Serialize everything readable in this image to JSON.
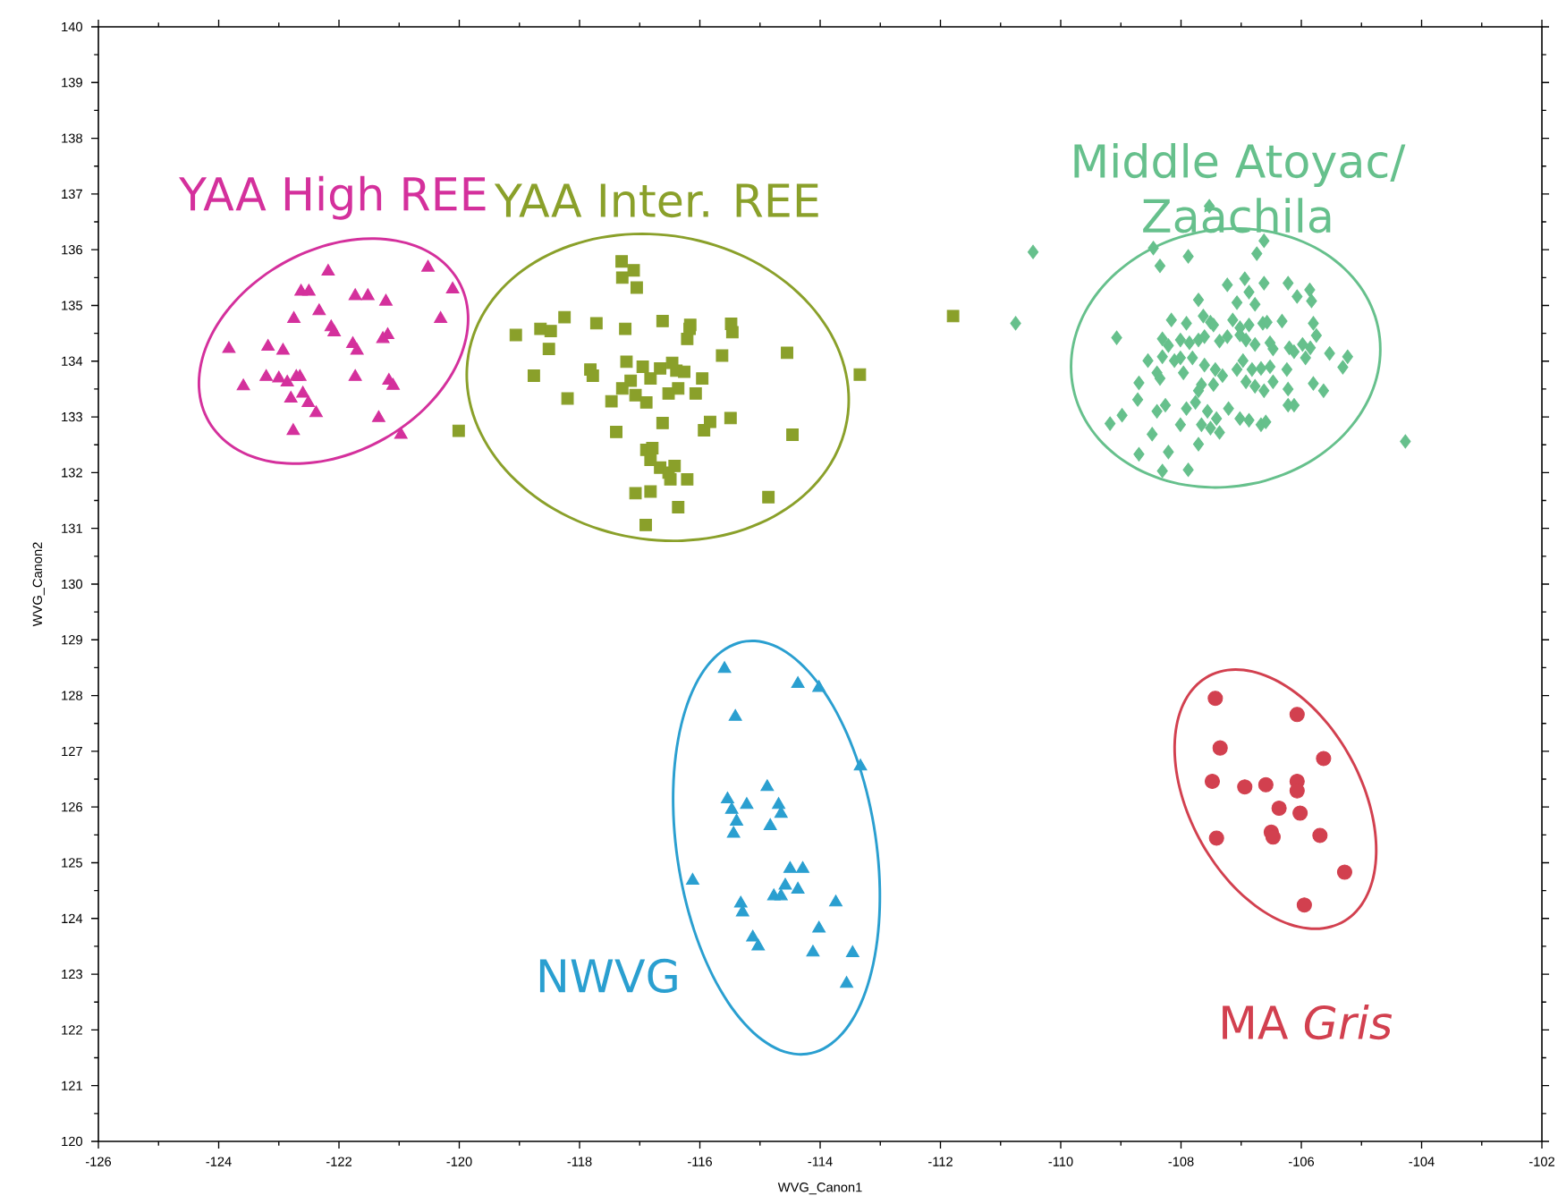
{
  "chart_data": {
    "type": "scatter",
    "xlabel": "WVG_Canon1",
    "ylabel": "WVG_Canon2",
    "xlim": [
      -126,
      -102
    ],
    "xticks": [
      -126,
      -124,
      -122,
      -120,
      -118,
      -116,
      -114,
      -112,
      -110,
      -108,
      -106,
      -104,
      -102
    ],
    "ylim": [
      120,
      140
    ],
    "yticks": [
      120,
      121,
      122,
      123,
      124,
      125,
      126,
      127,
      128,
      129,
      130,
      131,
      132,
      133,
      134,
      135,
      136,
      137,
      138,
      139,
      140
    ],
    "series": [
      {
        "name": "YAA High REE",
        "color": "#d4309c",
        "marker": "triangle",
        "x": [
          -123.83,
          -123.59,
          -123.18,
          -122.93,
          -123.21,
          -123.0,
          -122.86,
          -122.8,
          -122.71,
          -122.65,
          -122.6,
          -122.51,
          -122.38,
          -122.76,
          -122.63,
          -122.5,
          -122.75,
          -122.33,
          -122.18,
          -122.13,
          -122.08,
          -121.77,
          -121.7,
          -121.73,
          -121.73,
          -121.52,
          -121.22,
          -121.19,
          -121.27,
          -121.17,
          -121.1,
          -121.34,
          -120.97,
          -120.52,
          -120.11,
          -120.31
        ],
        "values": [
          134.22,
          133.55,
          134.26,
          134.19,
          133.72,
          133.69,
          133.62,
          133.33,
          133.72,
          133.72,
          133.42,
          133.25,
          133.07,
          132.75,
          135.25,
          135.25,
          134.76,
          134.9,
          135.61,
          134.61,
          134.52,
          134.31,
          134.19,
          133.72,
          135.17,
          135.17,
          135.07,
          134.47,
          134.4,
          133.65,
          133.56,
          132.98,
          132.68,
          135.68,
          135.29,
          134.76
        ]
      },
      {
        "name": "YAA Inter. REE",
        "color": "#8aa02a",
        "marker": "square",
        "x": [
          -119.06,
          -118.65,
          -118.48,
          -118.25,
          -118.76,
          -118.51,
          -118.2,
          -117.82,
          -117.78,
          -117.72,
          -117.47,
          -117.39,
          -117.3,
          -117.1,
          -117.29,
          -117.05,
          -117.24,
          -117.15,
          -117.29,
          -117.22,
          -117.07,
          -116.95,
          -116.89,
          -116.82,
          -116.62,
          -116.66,
          -116.39,
          -116.46,
          -116.26,
          -116.17,
          -116.21,
          -116.16,
          -115.96,
          -115.93,
          -115.83,
          -116.07,
          -116.36,
          -116.52,
          -116.62,
          -116.89,
          -116.79,
          -116.82,
          -116.66,
          -116.52,
          -116.42,
          -116.49,
          -116.21,
          -117.07,
          -116.82,
          -116.36,
          -116.9,
          -115.63,
          -115.48,
          -115.46,
          -115.49,
          -114.55,
          -114.46,
          -114.86,
          -113.34,
          -111.79,
          -120.01
        ],
        "values": [
          134.47,
          134.58,
          134.54,
          134.79,
          133.74,
          134.22,
          133.33,
          133.85,
          133.74,
          134.68,
          133.28,
          132.73,
          135.79,
          135.63,
          135.5,
          135.32,
          134.58,
          133.65,
          133.51,
          133.99,
          133.39,
          133.9,
          133.26,
          133.69,
          134.72,
          133.87,
          133.83,
          133.97,
          133.81,
          134.58,
          134.4,
          134.65,
          133.69,
          132.76,
          132.91,
          133.42,
          133.51,
          133.42,
          132.89,
          132.41,
          132.44,
          132.23,
          132.09,
          132.0,
          132.12,
          131.88,
          131.88,
          131.63,
          131.66,
          131.38,
          131.06,
          134.1,
          134.67,
          134.52,
          132.98,
          134.15,
          132.68,
          131.56,
          133.76,
          134.81,
          132.75
        ]
      },
      {
        "name": "Middle Atoyac/ Zaachila",
        "color": "#66c08c",
        "marker": "diamond",
        "x": [
          -110.46,
          -110.75,
          -108.46,
          -108.35,
          -107.88,
          -107.53,
          -106.74,
          -106.62,
          -107.23,
          -106.94,
          -106.62,
          -106.22,
          -105.86,
          -106.07,
          -105.83,
          -107.71,
          -106.87,
          -106.77,
          -107.07,
          -108.16,
          -107.91,
          -107.63,
          -107.51,
          -107.46,
          -107.14,
          -107.02,
          -106.87,
          -106.64,
          -106.57,
          -106.32,
          -105.8,
          -105.75,
          -108.31,
          -109.07,
          -108.21,
          -108.01,
          -107.86,
          -107.71,
          -107.61,
          -107.36,
          -107.23,
          -107.02,
          -106.92,
          -106.77,
          -106.52,
          -106.47,
          -106.2,
          -106.12,
          -105.98,
          -105.85,
          -105.53,
          -105.23,
          -105.31,
          -108.55,
          -108.31,
          -108.11,
          -108.01,
          -107.81,
          -107.61,
          -107.43,
          -107.31,
          -107.07,
          -106.97,
          -106.82,
          -106.67,
          -106.52,
          -106.24,
          -105.93,
          -108.4,
          -108.35,
          -107.96,
          -107.66,
          -107.46,
          -108.7,
          -108.72,
          -107.71,
          -106.92,
          -106.77,
          -106.62,
          -106.47,
          -106.22,
          -105.8,
          -105.63,
          -108.4,
          -108.26,
          -107.91,
          -107.76,
          -107.56,
          -107.21,
          -106.22,
          -106.12,
          -109.18,
          -108.98,
          -108.01,
          -107.66,
          -107.51,
          -107.36,
          -107.41,
          -107.02,
          -106.87,
          -106.67,
          -106.59,
          -108.48,
          -107.71,
          -108.7,
          -108.21,
          -108.31,
          -107.88,
          -104.27
        ],
        "values": [
          135.96,
          134.68,
          136.03,
          135.71,
          135.88,
          136.78,
          135.93,
          136.16,
          135.37,
          135.48,
          135.4,
          135.4,
          135.28,
          135.16,
          135.08,
          135.1,
          135.24,
          135.02,
          135.05,
          134.74,
          134.68,
          134.81,
          134.7,
          134.65,
          134.74,
          134.6,
          134.65,
          134.68,
          134.7,
          134.72,
          134.68,
          134.46,
          134.4,
          134.42,
          134.28,
          134.38,
          134.33,
          134.38,
          134.44,
          134.36,
          134.44,
          134.47,
          134.38,
          134.3,
          134.33,
          134.22,
          134.24,
          134.17,
          134.3,
          134.24,
          134.14,
          134.08,
          133.89,
          134.01,
          134.08,
          134.01,
          134.06,
          134.06,
          133.93,
          133.85,
          133.74,
          133.85,
          134.01,
          133.85,
          133.87,
          133.9,
          133.85,
          134.06,
          133.79,
          133.69,
          133.79,
          133.58,
          133.58,
          133.61,
          133.31,
          133.47,
          133.63,
          133.55,
          133.47,
          133.63,
          133.5,
          133.6,
          133.47,
          133.1,
          133.21,
          133.15,
          133.26,
          133.1,
          133.15,
          133.21,
          133.21,
          132.88,
          133.03,
          132.86,
          132.86,
          132.8,
          132.72,
          132.97,
          132.97,
          132.94,
          132.86,
          132.91,
          132.69,
          132.51,
          132.33,
          132.37,
          132.03,
          132.05,
          132.56
        ]
      },
      {
        "name": "NWVG",
        "color": "#2a9fd0",
        "marker": "triangle",
        "x": [
          -115.59,
          -114.37,
          -114.02,
          -115.41,
          -113.33,
          -114.88,
          -115.54,
          -115.47,
          -115.22,
          -114.69,
          -114.65,
          -115.39,
          -114.83,
          -115.44,
          -116.12,
          -114.5,
          -114.29,
          -114.58,
          -114.77,
          -114.65,
          -114.37,
          -113.74,
          -115.32,
          -115.29,
          -114.02,
          -115.12,
          -115.03,
          -114.12,
          -113.46,
          -113.56
        ],
        "values": [
          128.48,
          128.21,
          128.14,
          127.62,
          126.73,
          126.36,
          126.14,
          125.95,
          126.04,
          126.04,
          125.88,
          125.74,
          125.66,
          125.52,
          124.68,
          124.89,
          124.89,
          124.59,
          124.4,
          124.4,
          124.52,
          124.29,
          124.27,
          124.11,
          123.82,
          123.66,
          123.5,
          123.39,
          123.38,
          122.83
        ]
      },
      {
        "name": "MA *Gris*",
        "color": "#d2404f",
        "marker": "circle",
        "x": [
          -107.43,
          -106.07,
          -107.35,
          -105.63,
          -107.48,
          -106.94,
          -106.59,
          -106.07,
          -106.07,
          -106.37,
          -106.02,
          -106.5,
          -106.47,
          -107.41,
          -105.69,
          -105.28,
          -105.95
        ],
        "values": [
          127.95,
          127.66,
          127.06,
          126.87,
          126.46,
          126.36,
          126.4,
          126.46,
          126.29,
          125.98,
          125.89,
          125.55,
          125.46,
          125.44,
          125.49,
          124.83,
          124.24
        ]
      }
    ]
  }
}
